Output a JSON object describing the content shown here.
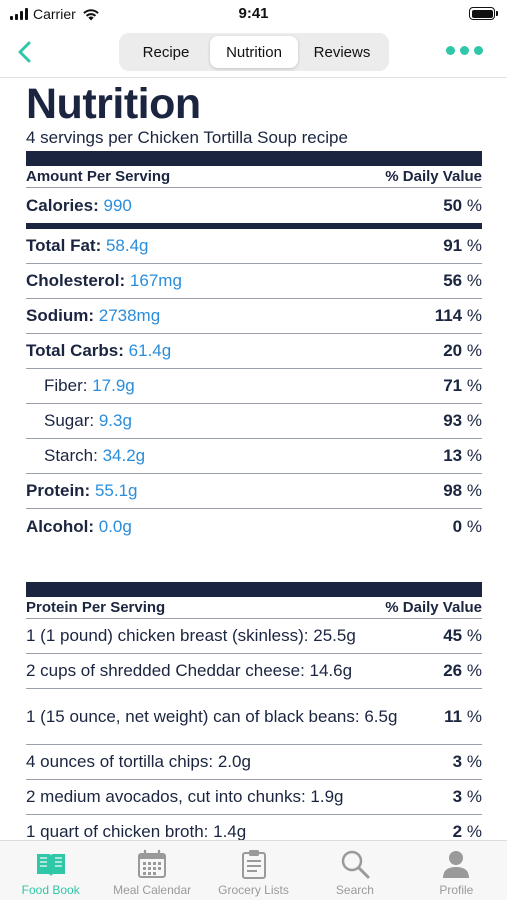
{
  "status": {
    "carrier": "Carrier",
    "time": "9:41"
  },
  "nav": {
    "tabs": [
      "Recipe",
      "Nutrition",
      "Reviews"
    ],
    "active_tab": "Nutrition"
  },
  "header": {
    "title": "Nutrition",
    "subtitle": "4 servings per Chicken Tortilla Soup recipe"
  },
  "nutrition": {
    "col_left": "Amount Per Serving",
    "col_right": "% Daily Value",
    "calories": {
      "label": "Calories:",
      "value": "990",
      "pct": "50",
      "unit": "%"
    },
    "nutrients": [
      {
        "label": "Total Fat:",
        "value": "58.4g",
        "pct": "91",
        "unit": "%",
        "bold": true,
        "indent": false
      },
      {
        "label": "Cholesterol:",
        "value": "167mg",
        "pct": "56",
        "unit": "%",
        "bold": true,
        "indent": false
      },
      {
        "label": "Sodium:",
        "value": "2738mg",
        "pct": "114",
        "unit": "%",
        "bold": true,
        "indent": false
      },
      {
        "label": "Total Carbs:",
        "value": "61.4g",
        "pct": "20",
        "unit": "%",
        "bold": true,
        "indent": false
      },
      {
        "label": "Fiber:",
        "value": "17.9g",
        "pct": "71",
        "unit": "%",
        "bold": false,
        "indent": true
      },
      {
        "label": "Sugar:",
        "value": "9.3g",
        "pct": "93",
        "unit": "%",
        "bold": false,
        "indent": true
      },
      {
        "label": "Starch:",
        "value": "34.2g",
        "pct": "13",
        "unit": "%",
        "bold": false,
        "indent": true
      },
      {
        "label": "Protein:",
        "value": "55.1g",
        "pct": "98",
        "unit": "%",
        "bold": true,
        "indent": false
      },
      {
        "label": "Alcohol:",
        "value": "0.0g",
        "pct": "0",
        "unit": "%",
        "bold": true,
        "indent": false
      }
    ]
  },
  "protein": {
    "col_left": "Protein Per Serving",
    "col_right": "% Daily Value",
    "items": [
      {
        "label": "1 (1 pound) chicken breast (skinless): 25.5g",
        "pct": "45",
        "unit": "%"
      },
      {
        "label": "2 cups of shredded Cheddar cheese: 14.6g",
        "pct": "26",
        "unit": "%"
      },
      {
        "label": "1 (15 ounce, net weight) can of black beans: 6.5g",
        "pct": "11",
        "unit": "%"
      },
      {
        "label": "4 ounces of tortilla chips: 2.0g",
        "pct": "3",
        "unit": "%"
      },
      {
        "label": "2 medium avocados, cut into chunks: 1.9g",
        "pct": "3",
        "unit": "%"
      },
      {
        "label": "1 quart of chicken broth: 1.4g",
        "pct": "2",
        "unit": "%"
      }
    ]
  },
  "tabbar": {
    "items": [
      {
        "label": "Food Book",
        "icon": "book-icon",
        "active": true
      },
      {
        "label": "Meal Calendar",
        "icon": "calendar-icon",
        "active": false
      },
      {
        "label": "Grocery Lists",
        "icon": "clipboard-icon",
        "active": false
      },
      {
        "label": "Search",
        "icon": "search-icon",
        "active": false
      },
      {
        "label": "Profile",
        "icon": "person-icon",
        "active": false
      }
    ]
  },
  "colors": {
    "accent": "#2ec7a7",
    "navy": "#1b2540",
    "value_blue": "#2a8ddb"
  }
}
